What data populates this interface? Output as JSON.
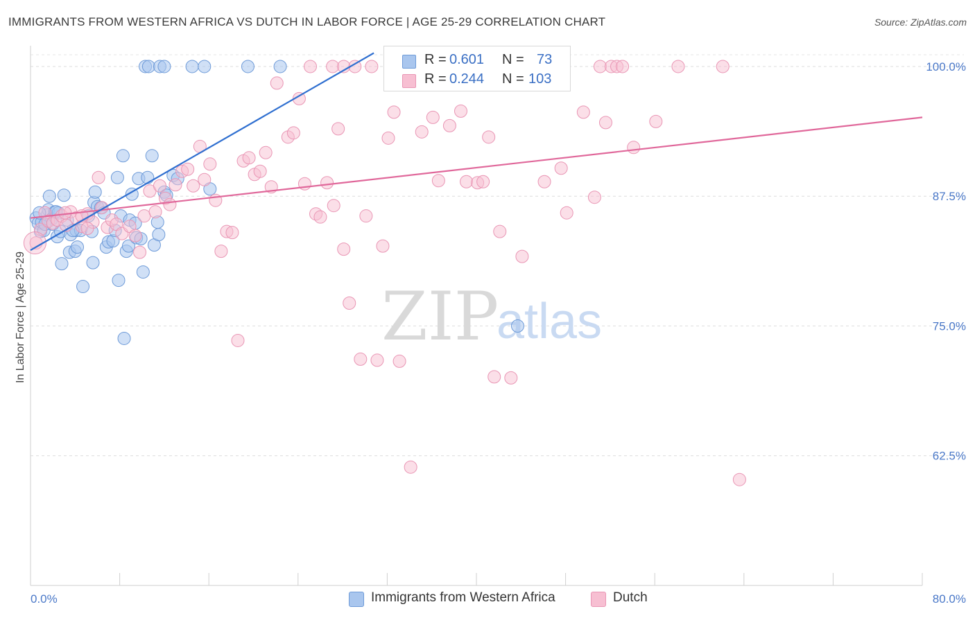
{
  "title": "IMMIGRANTS FROM WESTERN AFRICA VS DUTCH IN LABOR FORCE | AGE 25-29 CORRELATION CHART",
  "source": "Source: ZipAtlas.com",
  "watermark": {
    "zip": "ZIP",
    "atlas": "atlas"
  },
  "stats": {
    "r_label": "R =",
    "n_label": "N =",
    "rows": [
      {
        "r": "0.601",
        "n": "73"
      },
      {
        "r": "0.244",
        "n": "103"
      }
    ]
  },
  "colors": {
    "blue_fill": "#a9c6ee",
    "blue_stroke": "#6d9ad8",
    "blue_line": "#2f6fd0",
    "pink_fill": "#f7bfd2",
    "pink_stroke": "#e995b4",
    "pink_line": "#e0679a",
    "tick_text": "#4a78c8"
  },
  "chart_data": {
    "type": "scatter",
    "title": "IMMIGRANTS FROM WESTERN AFRICA VS DUTCH IN LABOR FORCE | AGE 25-29 CORRELATION CHART",
    "ylabel": "In Labor Force | Age 25-29",
    "xlim": [
      0,
      80
    ],
    "ylim": [
      50,
      102
    ],
    "y_ticks": [
      62.5,
      75.0,
      87.5,
      100.0
    ],
    "y_tick_labels": [
      "62.5%",
      "75.0%",
      "87.5%",
      "100.0%"
    ],
    "x_tick_labels": [
      "0.0%",
      "80.0%"
    ],
    "legend": [
      "Immigrants from Western Africa",
      "Dutch"
    ],
    "series": [
      {
        "name": "Immigrants from Western Africa",
        "trend": {
          "x": [
            0,
            30.8
          ],
          "y": [
            82.3,
            101.3
          ]
        },
        "points": [
          [
            0.5,
            85.4
          ],
          [
            0.7,
            84.9
          ],
          [
            0.9,
            84.1
          ],
          [
            1.0,
            85.0
          ],
          [
            1.2,
            84.2
          ],
          [
            1.5,
            85.7
          ],
          [
            1.6,
            86.2
          ],
          [
            1.7,
            87.5
          ],
          [
            1.9,
            85.3
          ],
          [
            2.0,
            84.8
          ],
          [
            2.2,
            86.0
          ],
          [
            2.4,
            83.6
          ],
          [
            2.5,
            85.9
          ],
          [
            2.7,
            84.1
          ],
          [
            2.8,
            81.0
          ],
          [
            3.0,
            87.6
          ],
          [
            3.3,
            85.2
          ],
          [
            3.5,
            82.1
          ],
          [
            3.6,
            83.8
          ],
          [
            4.0,
            82.2
          ],
          [
            4.1,
            84.2
          ],
          [
            4.2,
            82.6
          ],
          [
            4.5,
            84.2
          ],
          [
            4.7,
            78.8
          ],
          [
            5.2,
            85.6
          ],
          [
            5.5,
            84.1
          ],
          [
            5.6,
            81.1
          ],
          [
            5.7,
            86.9
          ],
          [
            5.8,
            87.9
          ],
          [
            6.0,
            86.5
          ],
          [
            6.3,
            86.4
          ],
          [
            6.8,
            82.6
          ],
          [
            7.0,
            83.1
          ],
          [
            7.4,
            83.2
          ],
          [
            7.6,
            84.2
          ],
          [
            7.8,
            89.3
          ],
          [
            7.9,
            79.4
          ],
          [
            8.1,
            85.6
          ],
          [
            8.3,
            91.4
          ],
          [
            8.4,
            73.8
          ],
          [
            8.6,
            82.2
          ],
          [
            8.8,
            82.7
          ],
          [
            8.9,
            85.2
          ],
          [
            9.1,
            87.7
          ],
          [
            9.4,
            84.9
          ],
          [
            9.5,
            83.5
          ],
          [
            9.7,
            89.2
          ],
          [
            10.1,
            80.2
          ],
          [
            10.5,
            89.3
          ],
          [
            10.9,
            91.4
          ],
          [
            11.1,
            82.8
          ],
          [
            11.5,
            83.8
          ],
          [
            11.4,
            85.0
          ],
          [
            12.0,
            87.9
          ],
          [
            12.2,
            87.6
          ],
          [
            12.8,
            89.5
          ],
          [
            13.2,
            89.2
          ],
          [
            16.1,
            88.2
          ],
          [
            10.3,
            100.0
          ],
          [
            10.6,
            100.0
          ],
          [
            11.6,
            100.0
          ],
          [
            12.0,
            100.0
          ],
          [
            14.5,
            100.0
          ],
          [
            15.6,
            100.0
          ],
          [
            19.5,
            100.0
          ],
          [
            22.4,
            100.0
          ],
          [
            43.7,
            75.0
          ],
          [
            6.6,
            85.9
          ],
          [
            3.8,
            84.2
          ],
          [
            1.3,
            84.8
          ],
          [
            2.3,
            86.0
          ],
          [
            0.8,
            85.9
          ],
          [
            9.9,
            83.4
          ]
        ]
      },
      {
        "name": "Dutch",
        "trend": {
          "x": [
            0,
            80
          ],
          "y": [
            85.4,
            95.1
          ]
        },
        "points": [
          [
            0.5,
            83.0
          ],
          [
            0.9,
            84.3
          ],
          [
            1.3,
            85.9
          ],
          [
            1.6,
            85.1
          ],
          [
            2.0,
            84.9
          ],
          [
            2.4,
            85.2
          ],
          [
            2.8,
            85.6
          ],
          [
            3.2,
            84.7
          ],
          [
            3.6,
            86.0
          ],
          [
            4.1,
            85.4
          ],
          [
            4.6,
            84.6
          ],
          [
            5.1,
            85.8
          ],
          [
            5.6,
            85.0
          ],
          [
            6.1,
            89.3
          ],
          [
            6.4,
            86.4
          ],
          [
            6.9,
            84.5
          ],
          [
            7.3,
            85.2
          ],
          [
            7.7,
            84.8
          ],
          [
            8.2,
            83.9
          ],
          [
            8.9,
            84.6
          ],
          [
            9.4,
            83.7
          ],
          [
            9.8,
            82.1
          ],
          [
            10.2,
            85.6
          ],
          [
            10.7,
            88.0
          ],
          [
            11.2,
            86.0
          ],
          [
            11.6,
            88.5
          ],
          [
            12.1,
            87.3
          ],
          [
            12.5,
            86.7
          ],
          [
            13.0,
            88.6
          ],
          [
            13.6,
            89.9
          ],
          [
            14.1,
            90.1
          ],
          [
            14.6,
            88.5
          ],
          [
            15.2,
            92.3
          ],
          [
            15.6,
            89.1
          ],
          [
            16.1,
            90.6
          ],
          [
            16.6,
            87.1
          ],
          [
            17.1,
            82.2
          ],
          [
            17.6,
            84.1
          ],
          [
            18.1,
            84.0
          ],
          [
            18.6,
            73.6
          ],
          [
            19.1,
            90.9
          ],
          [
            19.6,
            91.2
          ],
          [
            20.1,
            89.6
          ],
          [
            20.6,
            89.9
          ],
          [
            21.1,
            91.7
          ],
          [
            21.6,
            88.4
          ],
          [
            22.1,
            98.4
          ],
          [
            23.1,
            93.2
          ],
          [
            23.6,
            93.6
          ],
          [
            24.1,
            96.9
          ],
          [
            24.6,
            88.7
          ],
          [
            25.1,
            100.0
          ],
          [
            25.6,
            85.8
          ],
          [
            26.0,
            85.5
          ],
          [
            26.6,
            88.8
          ],
          [
            27.2,
            86.6
          ],
          [
            27.6,
            94.0
          ],
          [
            28.1,
            82.4
          ],
          [
            28.6,
            77.2
          ],
          [
            29.1,
            100.0
          ],
          [
            29.6,
            71.8
          ],
          [
            30.1,
            85.6
          ],
          [
            30.6,
            100.0
          ],
          [
            31.1,
            71.7
          ],
          [
            31.6,
            82.7
          ],
          [
            32.1,
            93.1
          ],
          [
            32.6,
            95.6
          ],
          [
            33.1,
            71.6
          ],
          [
            33.6,
            100.0
          ],
          [
            34.1,
            61.4
          ],
          [
            35.1,
            93.7
          ],
          [
            36.1,
            95.1
          ],
          [
            36.6,
            89.0
          ],
          [
            37.6,
            94.3
          ],
          [
            38.6,
            95.7
          ],
          [
            39.1,
            88.9
          ],
          [
            40.1,
            88.8
          ],
          [
            40.6,
            88.9
          ],
          [
            41.1,
            93.2
          ],
          [
            41.6,
            70.1
          ],
          [
            42.1,
            84.1
          ],
          [
            43.1,
            70.0
          ],
          [
            44.1,
            81.7
          ],
          [
            46.1,
            88.9
          ],
          [
            47.6,
            90.2
          ],
          [
            48.1,
            85.9
          ],
          [
            49.6,
            95.6
          ],
          [
            50.6,
            87.4
          ],
          [
            51.1,
            100.0
          ],
          [
            51.6,
            94.6
          ],
          [
            52.1,
            100.0
          ],
          [
            52.6,
            100.0
          ],
          [
            53.1,
            100.0
          ],
          [
            54.1,
            92.2
          ],
          [
            56.1,
            94.7
          ],
          [
            58.1,
            100.0
          ],
          [
            62.1,
            100.0
          ],
          [
            63.6,
            60.2
          ],
          [
            27.1,
            100.0
          ],
          [
            28.1,
            100.0
          ],
          [
            5.1,
            84.4
          ],
          [
            4.6,
            85.6
          ],
          [
            3.1,
            85.9
          ]
        ]
      }
    ]
  }
}
